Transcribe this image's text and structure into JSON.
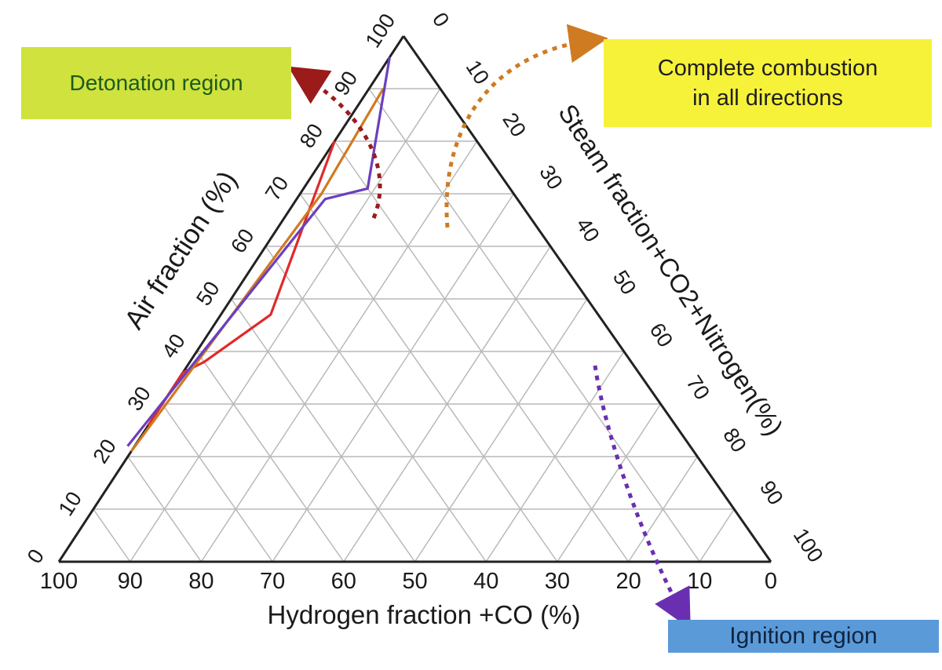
{
  "axes": {
    "bottom": {
      "label": "Hydrogen fraction +CO (%)",
      "ticks": [
        "100",
        "90",
        "80",
        "70",
        "60",
        "50",
        "40",
        "30",
        "20",
        "10",
        "0"
      ]
    },
    "left": {
      "label": "Air fraction (%)",
      "ticks": [
        "0",
        "10",
        "20",
        "30",
        "40",
        "50",
        "60",
        "70",
        "80",
        "90",
        "100"
      ]
    },
    "right": {
      "label": "Steam fraction+CO2+Nitrogen(%)",
      "ticks": [
        "0",
        "10",
        "20",
        "30",
        "40",
        "50",
        "60",
        "70",
        "80",
        "90",
        "100"
      ]
    }
  },
  "regions": {
    "detonation": "Detonation region",
    "combustion": "Complete combustion\nin all directions",
    "ignition": "Ignition region"
  },
  "curves": [
    {
      "region": "detonation",
      "color": "#e02a2a",
      "points": [
        [
          74,
          26
        ],
        [
          64,
          36
        ],
        [
          60,
          38
        ],
        [
          46,
          47
        ],
        [
          20,
          80
        ]
      ]
    },
    {
      "region": "combustion",
      "color": "#d07a22",
      "points": [
        [
          79,
          21
        ],
        [
          27,
          70
        ],
        [
          8,
          90
        ]
      ]
    },
    {
      "region": "ignition",
      "color": "#6a3fbf",
      "points": [
        [
          79,
          22
        ],
        [
          27,
          69
        ],
        [
          20,
          71
        ],
        [
          4,
          96
        ]
      ]
    }
  ],
  "arrow_colors": {
    "detonation": "#9b1b1b",
    "combustion": "#cf7b22",
    "ignition": "#6a2fb0"
  },
  "colors": {
    "grid": "#b9b9b9",
    "frame": "#222222"
  }
}
